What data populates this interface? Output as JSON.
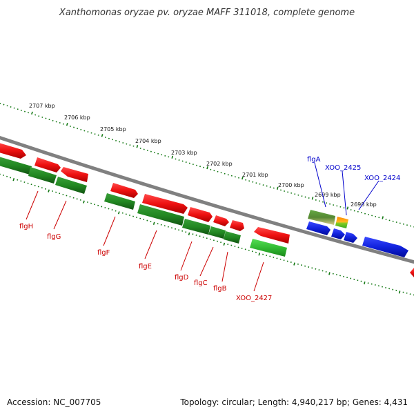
{
  "title": "Xanthomonas oryzae pv. oryzae MAFF 311018, complete genome",
  "footer": {
    "accession": "Accession: NC_007705",
    "summary": "Topology: circular; Length: 4,940,217 bp; Genes: 4,431"
  },
  "scale_labels": [
    "2707 kbp",
    "2706 kbp",
    "2705 kbp",
    "2704 kbp",
    "2703 kbp",
    "2702 kbp",
    "2701 kbp",
    "2700 kbp",
    "2699 kbp",
    "2698 kbp"
  ],
  "gene_labels_red": [
    "flgH",
    "flgG",
    "flgF",
    "flgE",
    "flgD",
    "flgC",
    "flgB",
    "XOO_2427"
  ],
  "gene_labels_blue": [
    "flgA",
    "XOO_2425",
    "XOO_2424"
  ],
  "colors": {
    "backbone": "#808080",
    "forward_gene": "#ee1111",
    "reverse_gene": "#228822",
    "other_gene": "#1122dd",
    "red_label": "#cc0000",
    "blue_label": "#0000cc",
    "scale_dots": "#117711"
  }
}
